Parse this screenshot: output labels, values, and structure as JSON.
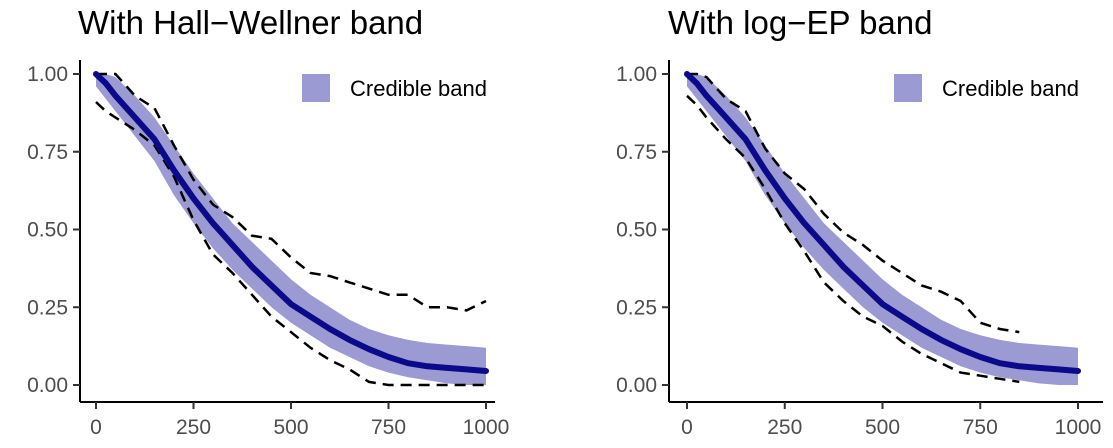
{
  "chart_data": [
    {
      "type": "line",
      "title": "With Hall−Wellner band",
      "xlabel": "",
      "ylabel": "",
      "xlim": [
        0,
        1000
      ],
      "ylim": [
        0,
        1
      ],
      "xticks": [
        0,
        250,
        500,
        750,
        1000
      ],
      "yticks": [
        0,
        0.25,
        0.5,
        0.75,
        1
      ],
      "xtick_labels": [
        "0",
        "250",
        "500",
        "750",
        "1000"
      ],
      "ytick_labels": [
        "0.00",
        "0.25",
        "0.50",
        "0.75",
        "1.00"
      ],
      "grid": false,
      "legend": {
        "position": "top-right",
        "entries": [
          "Credible band"
        ]
      },
      "colors": {
        "band": "#9c9ad2",
        "line": "#0a0a8a",
        "dashed": "#000000"
      },
      "x": [
        0,
        25,
        50,
        100,
        150,
        200,
        250,
        300,
        350,
        400,
        450,
        500,
        550,
        600,
        650,
        700,
        750,
        800,
        850,
        900,
        950,
        1000
      ],
      "series": [
        {
          "role": "posterior mean",
          "values": [
            1.0,
            0.97,
            0.93,
            0.86,
            0.79,
            0.69,
            0.6,
            0.52,
            0.45,
            0.38,
            0.32,
            0.26,
            0.22,
            0.18,
            0.145,
            0.115,
            0.09,
            0.07,
            0.06,
            0.055,
            0.05,
            0.045
          ]
        },
        {
          "role": "band upper",
          "values": [
            1.0,
            1.0,
            0.99,
            0.93,
            0.86,
            0.77,
            0.68,
            0.6,
            0.52,
            0.46,
            0.4,
            0.34,
            0.29,
            0.25,
            0.21,
            0.18,
            0.16,
            0.145,
            0.135,
            0.13,
            0.125,
            0.12
          ]
        },
        {
          "role": "band lower",
          "values": [
            0.96,
            0.92,
            0.88,
            0.8,
            0.72,
            0.61,
            0.52,
            0.44,
            0.37,
            0.31,
            0.25,
            0.2,
            0.16,
            0.12,
            0.09,
            0.06,
            0.04,
            0.025,
            0.015,
            0.005,
            0.0,
            0.0
          ]
        },
        {
          "role": "hall-wellner upper",
          "values": [
            1.0,
            1.0,
            1.0,
            0.93,
            0.89,
            0.77,
            0.66,
            0.58,
            0.54,
            0.48,
            0.47,
            0.41,
            0.36,
            0.35,
            0.33,
            0.31,
            0.29,
            0.29,
            0.25,
            0.25,
            0.24,
            0.27
          ]
        },
        {
          "role": "hall-wellner lower",
          "values": [
            0.91,
            0.88,
            0.86,
            0.82,
            0.77,
            0.67,
            0.53,
            0.42,
            0.36,
            0.29,
            0.22,
            0.17,
            0.12,
            0.08,
            0.05,
            0.01,
            0.0,
            0.0,
            0.0,
            0.0,
            0.0,
            0.0
          ]
        }
      ]
    },
    {
      "type": "line",
      "title": "With log−EP band",
      "xlabel": "",
      "ylabel": "",
      "xlim": [
        0,
        1000
      ],
      "ylim": [
        0,
        1
      ],
      "xticks": [
        0,
        250,
        500,
        750,
        1000
      ],
      "yticks": [
        0,
        0.25,
        0.5,
        0.75,
        1
      ],
      "xtick_labels": [
        "0",
        "250",
        "500",
        "750",
        "1000"
      ],
      "ytick_labels": [
        "0.00",
        "0.25",
        "0.50",
        "0.75",
        "1.00"
      ],
      "grid": false,
      "legend": {
        "position": "top-right",
        "entries": [
          "Credible band"
        ]
      },
      "colors": {
        "band": "#9c9ad2",
        "line": "#0a0a8a",
        "dashed": "#000000"
      },
      "x": [
        0,
        25,
        50,
        100,
        150,
        200,
        250,
        300,
        350,
        400,
        450,
        500,
        550,
        600,
        650,
        700,
        750,
        800,
        850,
        900,
        950,
        1000
      ],
      "series": [
        {
          "role": "posterior mean",
          "values": [
            1.0,
            0.97,
            0.93,
            0.86,
            0.79,
            0.69,
            0.6,
            0.52,
            0.45,
            0.38,
            0.32,
            0.26,
            0.22,
            0.18,
            0.145,
            0.115,
            0.09,
            0.07,
            0.06,
            0.055,
            0.05,
            0.045
          ]
        },
        {
          "role": "band upper",
          "values": [
            1.0,
            1.0,
            0.99,
            0.93,
            0.86,
            0.77,
            0.68,
            0.6,
            0.52,
            0.46,
            0.4,
            0.34,
            0.29,
            0.25,
            0.21,
            0.18,
            0.16,
            0.145,
            0.135,
            0.13,
            0.125,
            0.12
          ]
        },
        {
          "role": "band lower",
          "values": [
            0.96,
            0.92,
            0.88,
            0.8,
            0.72,
            0.61,
            0.52,
            0.44,
            0.37,
            0.31,
            0.25,
            0.2,
            0.16,
            0.12,
            0.09,
            0.06,
            0.04,
            0.025,
            0.015,
            0.005,
            0.0,
            0.0
          ]
        },
        {
          "role": "log-EP upper",
          "values": [
            1.0,
            1.0,
            0.99,
            0.92,
            0.88,
            0.76,
            0.68,
            0.63,
            0.55,
            0.49,
            0.45,
            0.4,
            0.36,
            0.32,
            0.3,
            0.27,
            0.2,
            0.18,
            0.17,
            null,
            null,
            null
          ]
        },
        {
          "role": "log-EP lower",
          "values": [
            0.93,
            0.9,
            0.86,
            0.79,
            0.73,
            0.63,
            0.52,
            0.43,
            0.33,
            0.27,
            0.22,
            0.19,
            0.14,
            0.1,
            0.07,
            0.04,
            0.03,
            0.02,
            0.01,
            null,
            null,
            null
          ]
        }
      ]
    }
  ]
}
